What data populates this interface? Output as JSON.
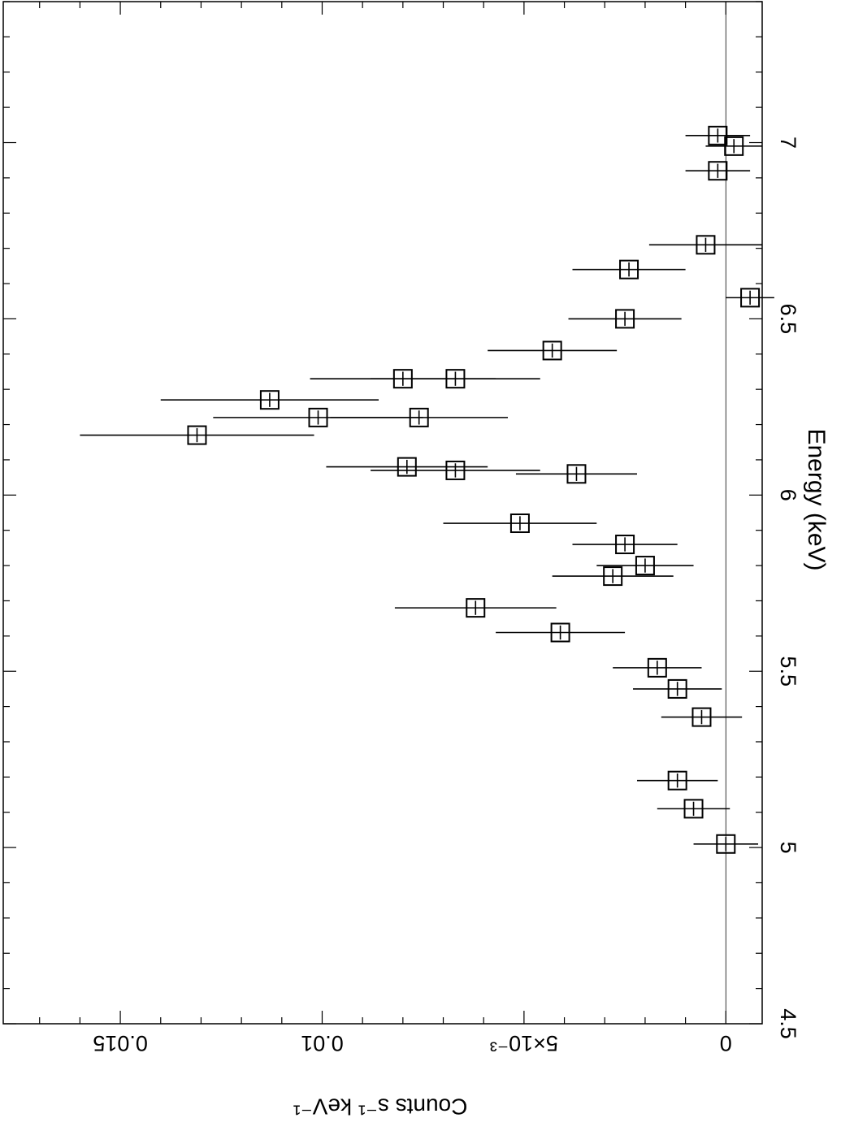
{
  "chart_data": {
    "type": "scatter",
    "orientation": "rotated-90-clockwise",
    "xlabel": "Energy (keV)",
    "ylabel": "Counts s⁻¹ keV⁻¹",
    "xlim": [
      4.5,
      7.4
    ],
    "ylim": [
      -0.0009,
      0.0179
    ],
    "x_ticks": [
      {
        "value": 4.5,
        "label": "4.5"
      },
      {
        "value": 5,
        "label": "5"
      },
      {
        "value": 5.5,
        "label": "5.5"
      },
      {
        "value": 6,
        "label": "6"
      },
      {
        "value": 6.5,
        "label": "6.5"
      },
      {
        "value": 7,
        "label": "7"
      }
    ],
    "y_ticks": [
      {
        "value": 0,
        "label": "0"
      },
      {
        "value": 0.005,
        "label": "5×10⁻³"
      },
      {
        "value": 0.01,
        "label": "0.01"
      },
      {
        "value": 0.015,
        "label": "0.015"
      }
    ],
    "zero_line": true,
    "marker": "open-square",
    "points": [
      {
        "x": 5.01,
        "y": -0.0,
        "xerr": 0.02,
        "yerr": 0.0008
      },
      {
        "x": 5.11,
        "y": 0.0008,
        "xerr": 0.02,
        "yerr": 0.0009
      },
      {
        "x": 5.19,
        "y": 0.0012,
        "xerr": 0.02,
        "yerr": 0.001
      },
      {
        "x": 5.37,
        "y": 0.0006,
        "xerr": 0.02,
        "yerr": 0.001
      },
      {
        "x": 5.45,
        "y": 0.0012,
        "xerr": 0.02,
        "yerr": 0.0011
      },
      {
        "x": 5.51,
        "y": 0.0017,
        "xerr": 0.02,
        "yerr": 0.0011
      },
      {
        "x": 5.61,
        "y": 0.0041,
        "xerr": 0.02,
        "yerr": 0.0016
      },
      {
        "x": 5.68,
        "y": 0.0062,
        "xerr": 0.02,
        "yerr": 0.002
      },
      {
        "x": 5.77,
        "y": 0.0028,
        "xerr": 0.02,
        "yerr": 0.0015
      },
      {
        "x": 5.8,
        "y": 0.002,
        "xerr": 0.02,
        "yerr": 0.0012
      },
      {
        "x": 5.86,
        "y": 0.0025,
        "xerr": 0.02,
        "yerr": 0.0013
      },
      {
        "x": 5.92,
        "y": 0.0051,
        "xerr": 0.02,
        "yerr": 0.0019
      },
      {
        "x": 6.06,
        "y": 0.0037,
        "xerr": 0.02,
        "yerr": 0.0015
      },
      {
        "x": 6.07,
        "y": 0.0067,
        "xerr": 0.02,
        "yerr": 0.0021
      },
      {
        "x": 6.08,
        "y": 0.0079,
        "xerr": 0.02,
        "yerr": 0.002
      },
      {
        "x": 6.17,
        "y": 0.0131,
        "xerr": 0.02,
        "yerr": 0.0029
      },
      {
        "x": 6.22,
        "y": 0.0101,
        "xerr": 0.02,
        "yerr": 0.0026
      },
      {
        "x": 6.22,
        "y": 0.0076,
        "xerr": 0.02,
        "yerr": 0.0022
      },
      {
        "x": 6.27,
        "y": 0.0113,
        "xerr": 0.02,
        "yerr": 0.0027
      },
      {
        "x": 6.33,
        "y": 0.008,
        "xerr": 0.02,
        "yerr": 0.0023
      },
      {
        "x": 6.33,
        "y": 0.0067,
        "xerr": 0.02,
        "yerr": 0.0021
      },
      {
        "x": 6.41,
        "y": 0.0043,
        "xerr": 0.02,
        "yerr": 0.0016
      },
      {
        "x": 6.5,
        "y": 0.0025,
        "xerr": 0.02,
        "yerr": 0.0014
      },
      {
        "x": 6.56,
        "y": -0.0006,
        "xerr": 0.02,
        "yerr": 0.0006
      },
      {
        "x": 6.64,
        "y": 0.0024,
        "xerr": 0.02,
        "yerr": 0.0014
      },
      {
        "x": 6.71,
        "y": 0.0005,
        "xerr": 0.02,
        "yerr": 0.0014
      },
      {
        "x": 6.92,
        "y": 0.0002,
        "xerr": 0.02,
        "yerr": 0.0008
      },
      {
        "x": 6.99,
        "y": -0.0002,
        "xerr": 0.02,
        "yerr": 0.0007
      },
      {
        "x": 7.02,
        "y": 0.0002,
        "xerr": 0.02,
        "yerr": 0.0008
      }
    ]
  }
}
